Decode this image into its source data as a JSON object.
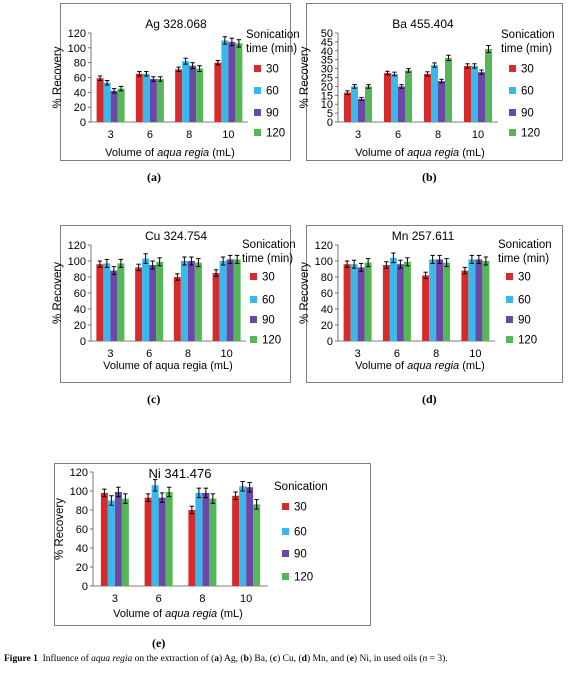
{
  "colors": {
    "30": "#d62b2b",
    "60": "#39b9ea",
    "90": "#6b48a8",
    "120": "#56b757"
  },
  "panel_labels": [
    "(a)",
    "(b)",
    "(c)",
    "(d)",
    "(e)"
  ],
  "caption": {
    "fig": "Figure 1",
    "t1": "Influence of ",
    "aqua": "aqua regia",
    "t2": " on the extraction of (",
    "a": "a",
    "t3": ") Ag, (",
    "b": "b",
    "t4": ") Ba, (",
    "c": "c",
    "t5": ") Cu, (",
    "d": "d",
    "t6": ") Mn, and (",
    "e": "e",
    "t7": ") Ni, in used oils (",
    "n": "n",
    "t8": " = 3)."
  },
  "chart_data": [
    {
      "type": "bar",
      "title": "Ag 328.068",
      "ylabel": "% Recovery",
      "xlabel": [
        "Volume of ",
        "aqua regia",
        "  (mL)"
      ],
      "ylim": [
        0,
        120
      ],
      "yticks": [
        0,
        20,
        40,
        60,
        80,
        100,
        120
      ],
      "categories": [
        "3",
        "6",
        "8",
        "10"
      ],
      "legend_title": [
        "Sonication",
        "time (min)"
      ],
      "series": [
        {
          "name": "30",
          "values": [
            59,
            65,
            71,
            80
          ],
          "errors": [
            3,
            3,
            3,
            3
          ]
        },
        {
          "name": "60",
          "values": [
            53,
            65,
            82,
            110
          ],
          "errors": [
            3,
            3,
            4,
            5
          ]
        },
        {
          "name": "90",
          "values": [
            42,
            58,
            76,
            108
          ],
          "errors": [
            3,
            3,
            4,
            5
          ]
        },
        {
          "name": "120",
          "values": [
            45,
            58,
            72,
            106
          ],
          "errors": [
            3,
            3,
            4,
            5
          ]
        }
      ]
    },
    {
      "type": "bar",
      "title": "Ba 455.404",
      "ylabel": "% Recovery",
      "xlabel": [
        "Volume of ",
        "aqua regia",
        "  (mL)"
      ],
      "ylim": [
        0,
        50
      ],
      "yticks": [
        0,
        5,
        10,
        15,
        20,
        25,
        30,
        35,
        40,
        45,
        50
      ],
      "categories": [
        "3",
        "6",
        "8",
        "10"
      ],
      "legend_title": [
        "Sonication",
        "time (min)"
      ],
      "series": [
        {
          "name": "30",
          "values": [
            16.5,
            27.5,
            27,
            31.5
          ],
          "errors": [
            1,
            1,
            1.2,
            1.2
          ]
        },
        {
          "name": "60",
          "values": [
            20,
            27,
            32,
            31.5
          ],
          "errors": [
            1,
            1,
            1.2,
            1.2
          ]
        },
        {
          "name": "90",
          "values": [
            13,
            20,
            23,
            28
          ],
          "errors": [
            0.8,
            1,
            1,
            1.2
          ]
        },
        {
          "name": "120",
          "values": [
            20,
            29,
            36,
            41
          ],
          "errors": [
            1,
            1,
            1.5,
            2
          ]
        }
      ]
    },
    {
      "type": "bar",
      "title": "Cu 324.754",
      "ylabel": "% Recovery",
      "xlabel": [
        "Volume of aqua regia (mL)"
      ],
      "ylim": [
        0,
        120
      ],
      "yticks": [
        0,
        20,
        40,
        60,
        80,
        100,
        120
      ],
      "categories": [
        "3",
        "6",
        "8",
        "10"
      ],
      "legend_title": [
        "Sonication",
        "time (min)"
      ],
      "series": [
        {
          "name": "30",
          "values": [
            96,
            92,
            80,
            85
          ],
          "errors": [
            4,
            4,
            4,
            4
          ]
        },
        {
          "name": "60",
          "values": [
            97,
            103,
            100,
            100
          ],
          "errors": [
            5,
            6,
            5,
            5
          ]
        },
        {
          "name": "90",
          "values": [
            88,
            95,
            100,
            102
          ],
          "errors": [
            5,
            5,
            5,
            5
          ]
        },
        {
          "name": "120",
          "values": [
            97,
            99,
            98,
            102
          ],
          "errors": [
            5,
            5,
            5,
            5
          ]
        }
      ]
    },
    {
      "type": "bar",
      "title": "Mn 257.611",
      "ylabel": "% Recovery",
      "xlabel": [
        "Volume of ",
        "aqua regia",
        " (mL)"
      ],
      "ylim": [
        0,
        120
      ],
      "yticks": [
        0,
        20,
        40,
        60,
        80,
        100,
        120
      ],
      "categories": [
        "3",
        "6",
        "8",
        "10"
      ],
      "legend_title": [
        "Sonication",
        "time (min)"
      ],
      "series": [
        {
          "name": "30",
          "values": [
            96,
            95,
            82,
            88
          ],
          "errors": [
            4,
            4,
            4,
            4
          ]
        },
        {
          "name": "60",
          "values": [
            96,
            104,
            102,
            102
          ],
          "errors": [
            5,
            6,
            5,
            5
          ]
        },
        {
          "name": "90",
          "values": [
            92,
            96,
            102,
            102
          ],
          "errors": [
            5,
            5,
            5,
            5
          ]
        },
        {
          "name": "120",
          "values": [
            98,
            99,
            98,
            100
          ],
          "errors": [
            5,
            5,
            5,
            5
          ]
        }
      ]
    },
    {
      "type": "bar",
      "title": "Ni 341.476",
      "ylabel": "% Recovery",
      "xlabel": [
        "Volume of ",
        "aqua regia",
        "  (mL)"
      ],
      "ylim": [
        0,
        120
      ],
      "yticks": [
        0,
        20,
        40,
        60,
        80,
        100,
        120
      ],
      "categories": [
        "3",
        "6",
        "8",
        "10"
      ],
      "legend_title": [
        "Sonication"
      ],
      "series": [
        {
          "name": "30",
          "values": [
            98,
            93,
            80,
            95
          ],
          "errors": [
            4,
            4,
            4,
            4
          ]
        },
        {
          "name": "60",
          "values": [
            90,
            106,
            98,
            105
          ],
          "errors": [
            5,
            6,
            5,
            5
          ]
        },
        {
          "name": "90",
          "values": [
            99,
            93,
            98,
            104
          ],
          "errors": [
            5,
            5,
            5,
            5
          ]
        },
        {
          "name": "120",
          "values": [
            92,
            99,
            92,
            86
          ],
          "errors": [
            5,
            5,
            5,
            5
          ]
        }
      ]
    }
  ]
}
